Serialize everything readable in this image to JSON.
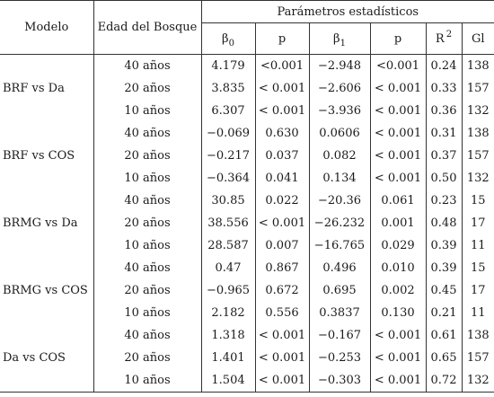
{
  "header": {
    "model": "Modelo",
    "age": "Edad del Bosque",
    "stats_title": "Parámetros estadísticos",
    "beta0_base": "β",
    "beta0_sub": "0",
    "p1": "p",
    "beta1_base": "β",
    "beta1_sub": "1",
    "p2": "p",
    "r2_base": "R",
    "r2_sup": "2",
    "gl": "Gl"
  },
  "groups": [
    {
      "model": "BRF vs Da",
      "rows": [
        {
          "age": "40 años",
          "b0": "4.179",
          "p1": "<0.001",
          "b1": "−2.948",
          "p2": "<0.001",
          "r2": "0.24",
          "gl": "138"
        },
        {
          "age": "20 años",
          "b0": "3.835",
          "p1": "< 0.001",
          "b1": "−2.606",
          "p2": "< 0.001",
          "r2": "0.33",
          "gl": "157"
        },
        {
          "age": "10 años",
          "b0": "6.307",
          "p1": "< 0.001",
          "b1": "−3.936",
          "p2": "< 0.001",
          "r2": "0.36",
          "gl": "132"
        }
      ]
    },
    {
      "model": "BRF vs COS",
      "rows": [
        {
          "age": "40 años",
          "b0": "−0.069",
          "p1": "0.630",
          "b1": "0.0606",
          "p2": "< 0.001",
          "r2": "0.31",
          "gl": "138"
        },
        {
          "age": "20 años",
          "b0": "−0.217",
          "p1": "0.037",
          "b1": "0.082",
          "p2": "< 0.001",
          "r2": "0.37",
          "gl": "157"
        },
        {
          "age": "10 años",
          "b0": "−0.364",
          "p1": "0.041",
          "b1": "0.134",
          "p2": "< 0.001",
          "r2": "0.50",
          "gl": "132"
        }
      ]
    },
    {
      "model": "BRMG vs Da",
      "rows": [
        {
          "age": "40 años",
          "b0": "30.85",
          "p1": "0.022",
          "b1": "−20.36",
          "p2": "0.061",
          "r2": "0.23",
          "gl": "15"
        },
        {
          "age": "20 años",
          "b0": "38.556",
          "p1": "< 0.001",
          "b1": "−26.232",
          "p2": "0.001",
          "r2": "0.48",
          "gl": "17"
        },
        {
          "age": "10 años",
          "b0": "28.587",
          "p1": "0.007",
          "b1": "−16.765",
          "p2": "0.029",
          "r2": "0.39",
          "gl": "11"
        }
      ]
    },
    {
      "model": "BRMG vs COS",
      "rows": [
        {
          "age": "40 años",
          "b0": "0.47",
          "p1": "0.867",
          "b1": "0.496",
          "p2": "0.010",
          "r2": "0.39",
          "gl": "15"
        },
        {
          "age": "20 años",
          "b0": "−0.965",
          "p1": "0.672",
          "b1": "0.695",
          "p2": "0.002",
          "r2": "0.45",
          "gl": "17"
        },
        {
          "age": "10 años",
          "b0": "2.182",
          "p1": "0.556",
          "b1": "0.3837",
          "p2": "0.130",
          "r2": "0.21",
          "gl": "11"
        }
      ]
    },
    {
      "model": "Da vs COS",
      "rows": [
        {
          "age": "40 años",
          "b0": "1.318",
          "p1": "< 0.001",
          "b1": "−0.167",
          "p2": "< 0.001",
          "r2": "0.61",
          "gl": "138"
        },
        {
          "age": "20 años",
          "b0": "1.401",
          "p1": "< 0.001",
          "b1": "−0.253",
          "p2": "< 0.001",
          "r2": "0.65",
          "gl": "157"
        },
        {
          "age": "10 años",
          "b0": "1.504",
          "p1": "< 0.001",
          "b1": "−0.303",
          "p2": "< 0.001",
          "r2": "0.72",
          "gl": "132"
        }
      ]
    }
  ]
}
